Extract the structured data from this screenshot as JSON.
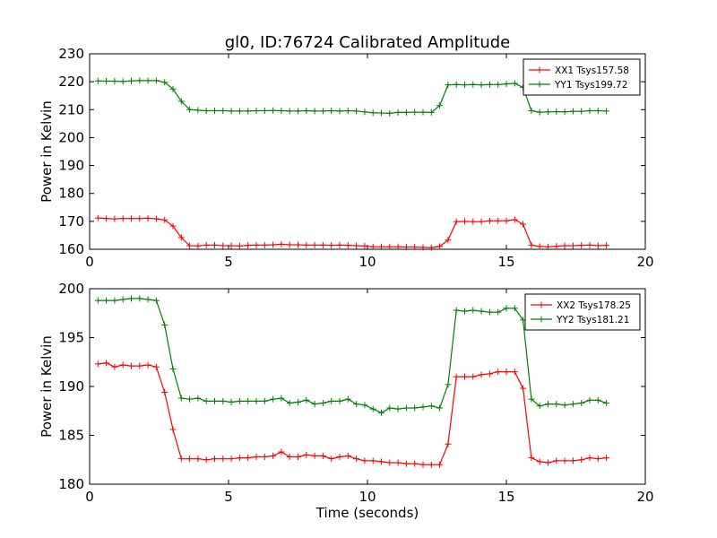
{
  "title": "gl0, ID:76724 Calibrated Amplitude",
  "chart_data": [
    {
      "type": "line",
      "xlabel": "",
      "ylabel": "Power in Kelvin",
      "xlim": [
        0,
        20
      ],
      "ylim": [
        160,
        230
      ],
      "xticks": [
        "0",
        "5",
        "10",
        "15",
        "20"
      ],
      "yticks": [
        "160",
        "170",
        "180",
        "190",
        "200",
        "210",
        "220",
        "230"
      ],
      "legend_position": "top-right",
      "x": [
        0.3,
        0.6,
        0.9,
        1.2,
        1.5,
        1.8,
        2.1,
        2.4,
        2.7,
        3.0,
        3.3,
        3.6,
        3.9,
        4.2,
        4.5,
        4.8,
        5.1,
        5.4,
        5.7,
        6.0,
        6.3,
        6.6,
        6.9,
        7.2,
        7.5,
        7.8,
        8.1,
        8.4,
        8.7,
        9.0,
        9.3,
        9.6,
        9.9,
        10.2,
        10.5,
        10.8,
        11.1,
        11.4,
        11.7,
        12.0,
        12.3,
        12.6,
        12.9,
        13.2,
        13.5,
        13.8,
        14.1,
        14.4,
        14.7,
        15.0,
        15.3,
        15.6,
        15.9,
        16.2,
        16.5,
        16.8,
        17.1,
        17.4,
        17.7,
        18.0,
        18.3,
        18.6
      ],
      "series": [
        {
          "name": "XX1 Tsys157.58",
          "color": "#ff0000",
          "values": [
            171.2,
            171.0,
            170.9,
            171.0,
            171.0,
            171.0,
            171.1,
            170.9,
            170.5,
            168.3,
            164.2,
            161.3,
            161.2,
            161.5,
            161.5,
            161.3,
            161.3,
            161.2,
            161.4,
            161.5,
            161.5,
            161.6,
            161.8,
            161.6,
            161.6,
            161.5,
            161.5,
            161.5,
            161.4,
            161.5,
            161.4,
            161.3,
            161.2,
            160.9,
            160.9,
            160.9,
            160.9,
            160.8,
            160.8,
            160.7,
            160.6,
            161.0,
            163.3,
            169.9,
            170.0,
            169.9,
            169.9,
            170.2,
            170.2,
            170.2,
            170.6,
            169.0,
            161.5,
            161.0,
            160.9,
            161.1,
            161.3,
            161.3,
            161.4,
            161.5,
            161.3,
            161.4
          ]
        },
        {
          "name": "YY1 Tsys199.72",
          "color": "#008000",
          "values": [
            220.3,
            220.2,
            220.2,
            220.1,
            220.3,
            220.4,
            220.4,
            220.4,
            219.8,
            217.4,
            213.0,
            210.0,
            209.8,
            209.6,
            209.6,
            209.6,
            209.5,
            209.5,
            209.5,
            209.6,
            209.6,
            209.7,
            209.6,
            209.5,
            209.5,
            209.6,
            209.5,
            209.5,
            209.6,
            209.5,
            209.6,
            209.5,
            209.2,
            208.9,
            208.8,
            208.7,
            209.0,
            209.0,
            209.1,
            209.1,
            209.0,
            211.5,
            218.9,
            219.0,
            218.9,
            219.0,
            218.9,
            219.0,
            219.0,
            219.2,
            219.4,
            218.0,
            209.6,
            209.1,
            209.2,
            209.3,
            209.2,
            209.4,
            209.4,
            209.6,
            209.6,
            209.5
          ]
        }
      ]
    },
    {
      "type": "line",
      "xlabel": "Time (seconds)",
      "ylabel": "Power in Kelvin",
      "xlim": [
        0,
        20
      ],
      "ylim": [
        180,
        200
      ],
      "xticks": [
        "0",
        "5",
        "10",
        "15",
        "20"
      ],
      "yticks": [
        "180",
        "185",
        "190",
        "195",
        "200"
      ],
      "legend_position": "top-right",
      "x": [
        0.3,
        0.6,
        0.9,
        1.2,
        1.5,
        1.8,
        2.1,
        2.4,
        2.7,
        3.0,
        3.3,
        3.6,
        3.9,
        4.2,
        4.5,
        4.8,
        5.1,
        5.4,
        5.7,
        6.0,
        6.3,
        6.6,
        6.9,
        7.2,
        7.5,
        7.8,
        8.1,
        8.4,
        8.7,
        9.0,
        9.3,
        9.6,
        9.9,
        10.2,
        10.5,
        10.8,
        11.1,
        11.4,
        11.7,
        12.0,
        12.3,
        12.6,
        12.9,
        13.2,
        13.5,
        13.8,
        14.1,
        14.4,
        14.7,
        15.0,
        15.3,
        15.6,
        15.9,
        16.2,
        16.5,
        16.8,
        17.1,
        17.4,
        17.7,
        18.0,
        18.3,
        18.6
      ],
      "series": [
        {
          "name": "XX2 Tsys178.25",
          "color": "#ff0000",
          "values": [
            192.3,
            192.4,
            192.0,
            192.2,
            192.1,
            192.1,
            192.2,
            192.0,
            189.4,
            185.6,
            182.6,
            182.6,
            182.6,
            182.5,
            182.6,
            182.6,
            182.6,
            182.7,
            182.7,
            182.8,
            182.8,
            182.9,
            183.3,
            182.8,
            182.8,
            183.0,
            182.9,
            182.9,
            182.6,
            182.8,
            182.9,
            182.6,
            182.4,
            182.4,
            182.3,
            182.2,
            182.2,
            182.1,
            182.1,
            182.0,
            182.0,
            182.0,
            184.1,
            191.0,
            191.0,
            191.0,
            191.2,
            191.3,
            191.5,
            191.5,
            191.5,
            189.8,
            182.7,
            182.3,
            182.2,
            182.4,
            182.4,
            182.4,
            182.5,
            182.7,
            182.6,
            182.7
          ]
        },
        {
          "name": "YY2 Tsys181.21",
          "color": "#008000",
          "values": [
            198.8,
            198.8,
            198.8,
            198.9,
            199.0,
            199.0,
            198.9,
            198.8,
            196.3,
            191.8,
            188.8,
            188.7,
            188.8,
            188.5,
            188.5,
            188.5,
            188.4,
            188.5,
            188.5,
            188.5,
            188.5,
            188.7,
            188.8,
            188.3,
            188.4,
            188.6,
            188.2,
            188.3,
            188.5,
            188.5,
            188.7,
            188.2,
            188.1,
            187.7,
            187.3,
            187.8,
            187.7,
            187.8,
            187.8,
            187.9,
            188.0,
            187.8,
            190.2,
            197.8,
            197.7,
            197.8,
            197.7,
            197.6,
            197.6,
            198.0,
            198.0,
            196.8,
            188.7,
            188.0,
            188.2,
            188.2,
            188.1,
            188.2,
            188.3,
            188.6,
            188.6,
            188.3
          ]
        }
      ]
    }
  ]
}
